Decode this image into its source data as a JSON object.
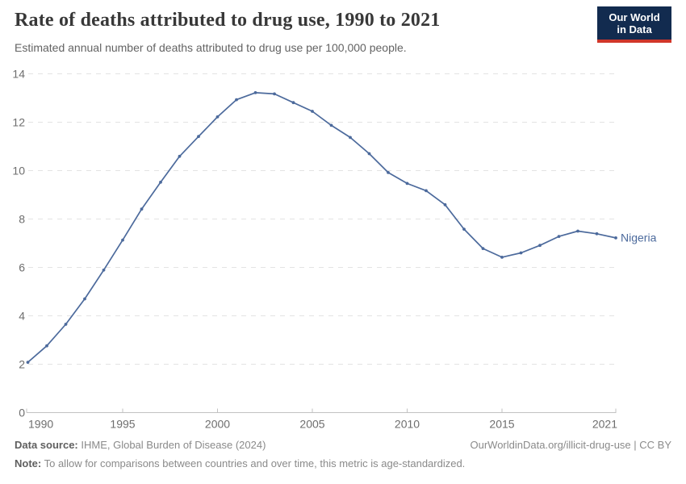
{
  "header": {
    "title": "Rate of deaths attributed to drug use, 1990 to 2021",
    "subtitle": "Estimated annual number of deaths attributed to drug use per 100,000 people.",
    "logo_line1": "Our World",
    "logo_line2": "in Data"
  },
  "chart_data": {
    "type": "line",
    "title": "Rate of deaths attributed to drug use, 1990 to 2021",
    "xlabel": "",
    "ylabel": "",
    "xlim": [
      1990,
      2021
    ],
    "ylim": [
      0,
      14
    ],
    "grid": "horizontal-dashed",
    "legend_position": "end-of-line",
    "y_ticks": [
      0,
      2,
      4,
      6,
      8,
      10,
      12,
      14
    ],
    "x_ticks": [
      1990,
      1995,
      2000,
      2005,
      2010,
      2015,
      2021
    ],
    "x": [
      1990,
      1991,
      1992,
      1993,
      1994,
      1995,
      1996,
      1997,
      1998,
      1999,
      2000,
      2001,
      2002,
      2003,
      2004,
      2005,
      2006,
      2007,
      2008,
      2009,
      2010,
      2011,
      2012,
      2013,
      2014,
      2015,
      2016,
      2017,
      2018,
      2019,
      2020,
      2021
    ],
    "series": [
      {
        "name": "Nigeria",
        "values": [
          2.08,
          2.76,
          3.65,
          4.7,
          5.89,
          7.13,
          8.41,
          9.52,
          10.59,
          11.41,
          12.22,
          12.93,
          13.22,
          13.17,
          12.81,
          12.45,
          11.87,
          11.37,
          10.7,
          9.92,
          9.47,
          9.17,
          8.59,
          7.58,
          6.78,
          6.42,
          6.6,
          6.91,
          7.28,
          7.5,
          7.39,
          7.22
        ]
      }
    ]
  },
  "footer": {
    "source_label": "Data source:",
    "source_value": "IHME, Global Burden of Disease (2024)",
    "link": "OurWorldinData.org/illicit-drug-use | CC BY",
    "note_label": "Note:",
    "note_value": "To allow for comparisons between countries and over time, this metric is age-standardized."
  },
  "colors": {
    "series_blue": "#4c6a9c",
    "logo_navy": "#122b4f",
    "logo_red": "#d0362a",
    "grid_gray": "#e3e3e3",
    "axis_gray": "#c2c2c2",
    "tick_text_gray": "#6e6e6e"
  }
}
